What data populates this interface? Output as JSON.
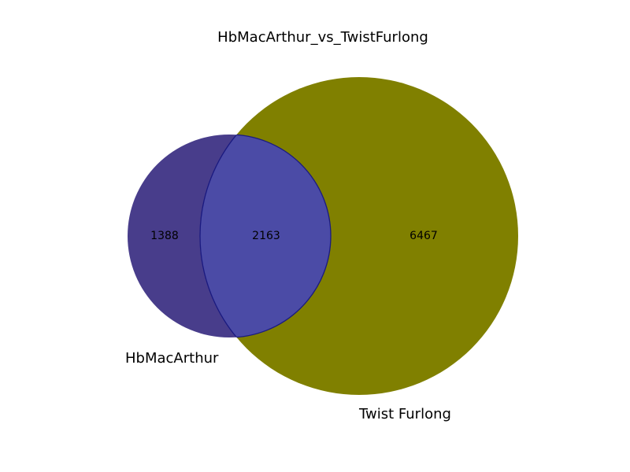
{
  "chart_data": {
    "type": "venn",
    "title": "HbMacArthur_vs_TwistFurlong",
    "sets": [
      {
        "name": "HbMacArthur",
        "color": "#483D8B"
      },
      {
        "name": "Twist Furlong",
        "color": "#808000"
      }
    ],
    "regions": {
      "only_a": 1388,
      "intersection": 2163,
      "only_b": 6467
    },
    "intersection_color": "#4B4BA6",
    "outline_color": "#1A1A80"
  }
}
